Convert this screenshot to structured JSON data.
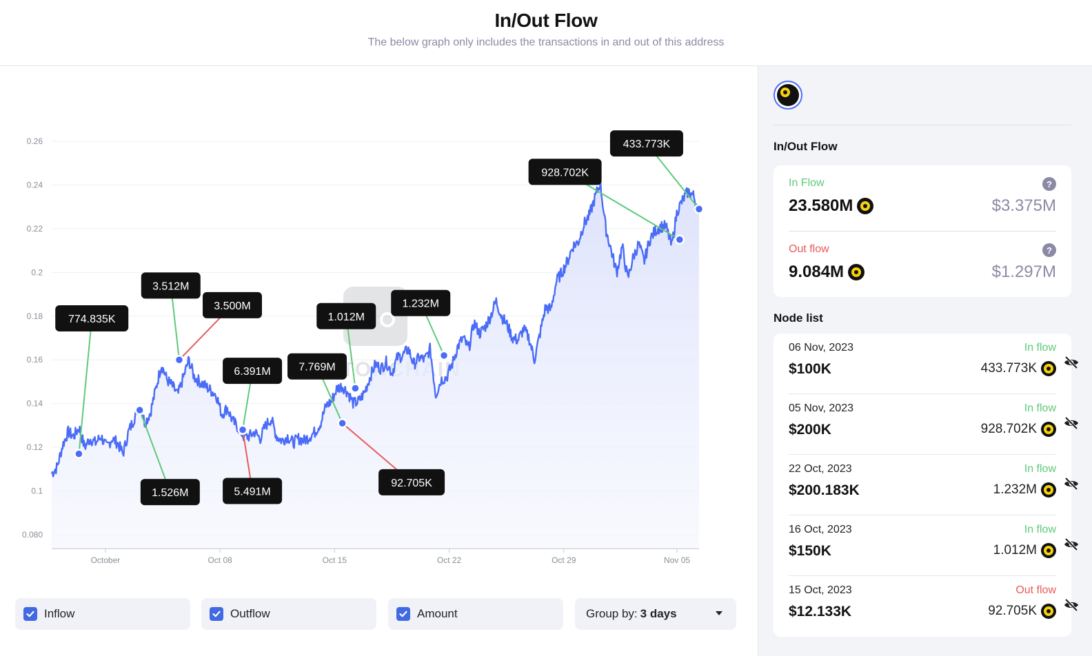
{
  "header": {
    "title": "In/Out Flow",
    "subtitle": "The below graph only includes the transactions in and out of this address"
  },
  "chart_data": {
    "type": "line",
    "ylim": [
      0.08,
      0.26
    ],
    "y_ticks": [
      "0.26",
      "0.24",
      "0.22",
      "0.2",
      "0.18",
      "0.16",
      "0.14",
      "0.12",
      "0.1",
      "0.080"
    ],
    "x_ticks": [
      "October",
      "Oct 08",
      "Oct 15",
      "Oct 22",
      "Oct 29",
      "Nov 05"
    ],
    "series": [
      {
        "values": [
          0.108,
          0.111,
          0.121,
          0.127,
          0.125,
          0.129,
          0.12,
          0.124,
          0.122,
          0.125,
          0.12,
          0.124,
          0.122,
          0.117,
          0.127,
          0.133,
          0.14,
          0.131,
          0.136,
          0.147,
          0.158,
          0.151,
          0.148,
          0.144,
          0.152,
          0.16,
          0.152,
          0.15,
          0.148,
          0.146,
          0.144,
          0.135,
          0.138,
          0.132,
          0.129,
          0.125,
          0.125,
          0.127,
          0.124,
          0.13,
          0.133,
          0.125,
          0.123,
          0.125,
          0.122,
          0.124,
          0.123,
          0.125,
          0.127,
          0.131,
          0.139,
          0.141,
          0.147,
          0.148,
          0.145,
          0.14,
          0.141,
          0.145,
          0.152,
          0.158,
          0.156,
          0.159,
          0.154,
          0.161,
          0.162,
          0.165,
          0.158,
          0.161,
          0.16,
          0.165,
          0.144,
          0.151,
          0.152,
          0.158,
          0.166,
          0.17,
          0.165,
          0.177,
          0.172,
          0.175,
          0.18,
          0.187,
          0.18,
          0.176,
          0.17,
          0.169,
          0.174,
          0.17,
          0.16,
          0.172,
          0.184,
          0.183,
          0.196,
          0.2,
          0.205,
          0.212,
          0.214,
          0.222,
          0.226,
          0.234,
          0.241,
          0.22,
          0.21,
          0.2,
          0.212,
          0.197,
          0.207,
          0.213,
          0.205,
          0.215,
          0.219,
          0.221,
          0.221,
          0.212,
          0.228,
          0.233,
          0.237,
          0.235,
          0.228
        ]
      }
    ],
    "annotations": [
      {
        "label": "774.835K",
        "kind": "in",
        "x": 0.042,
        "y": 0.117,
        "label_y": 0.179
      },
      {
        "label": "1.526M",
        "kind": "in",
        "x": 0.136,
        "y": 0.137,
        "label_y": 0.0995
      },
      {
        "label": "3.512M",
        "kind": "in",
        "x": 0.197,
        "y": 0.16,
        "label_y": 0.194
      },
      {
        "label": "3.500M",
        "kind": "out",
        "x": 0.197,
        "y": 0.16,
        "label_y": 0.185
      },
      {
        "label": "6.391M",
        "kind": "in",
        "x": 0.295,
        "y": 0.128,
        "label_y": 0.155
      },
      {
        "label": "5.491M",
        "kind": "out",
        "x": 0.295,
        "y": 0.128,
        "label_y": 0.1
      },
      {
        "label": "7.769M",
        "kind": "in",
        "x": 0.449,
        "y": 0.131,
        "label_y": 0.157
      },
      {
        "label": "92.705K",
        "kind": "out",
        "x": 0.449,
        "y": 0.131,
        "label_y": 0.104
      },
      {
        "label": "1.012M",
        "kind": "in",
        "x": 0.469,
        "y": 0.147,
        "label_y": 0.18
      },
      {
        "label": "1.232M",
        "kind": "in",
        "x": 0.606,
        "y": 0.162,
        "label_y": 0.186
      },
      {
        "label": "928.702K",
        "kind": "in",
        "x": 0.97,
        "y": 0.215,
        "label_y": 0.246
      },
      {
        "label": "433.773K",
        "kind": "in",
        "x": 1.0,
        "y": 0.229,
        "label_y": 0.259
      }
    ]
  },
  "watermark": "TONCHAIN",
  "controls": {
    "inflow_label": "Inflow",
    "outflow_label": "Outflow",
    "amount_label": "Amount",
    "groupby_label": "Group by:",
    "groupby_value": "3 days"
  },
  "sidebar": {
    "flow_title": "In/Out Flow",
    "in_flow": {
      "label": "In Flow",
      "amount": "23.580M",
      "usd": "$3.375M"
    },
    "out_flow": {
      "label": "Out flow",
      "amount": "9.084M",
      "usd": "$1.297M"
    },
    "node_title": "Node list",
    "nodes": [
      {
        "date": "06 Nov, 2023",
        "usd": "$100K",
        "type": "In flow",
        "amount": "433.773K",
        "direction": "in"
      },
      {
        "date": "05 Nov, 2023",
        "usd": "$200K",
        "type": "In flow",
        "amount": "928.702K",
        "direction": "in"
      },
      {
        "date": "22 Oct, 2023",
        "usd": "$200.183K",
        "type": "In flow",
        "amount": "1.232M",
        "direction": "in"
      },
      {
        "date": "16 Oct, 2023",
        "usd": "$150K",
        "type": "In flow",
        "amount": "1.012M",
        "direction": "in"
      },
      {
        "date": "15 Oct, 2023",
        "usd": "$12.133K",
        "type": "Out flow",
        "amount": "92.705K",
        "direction": "out"
      }
    ]
  },
  "colors": {
    "line": "#4a6cf7",
    "inflow": "#5ec97a",
    "outflow": "#e85a5a",
    "accent": "#4169e1"
  }
}
